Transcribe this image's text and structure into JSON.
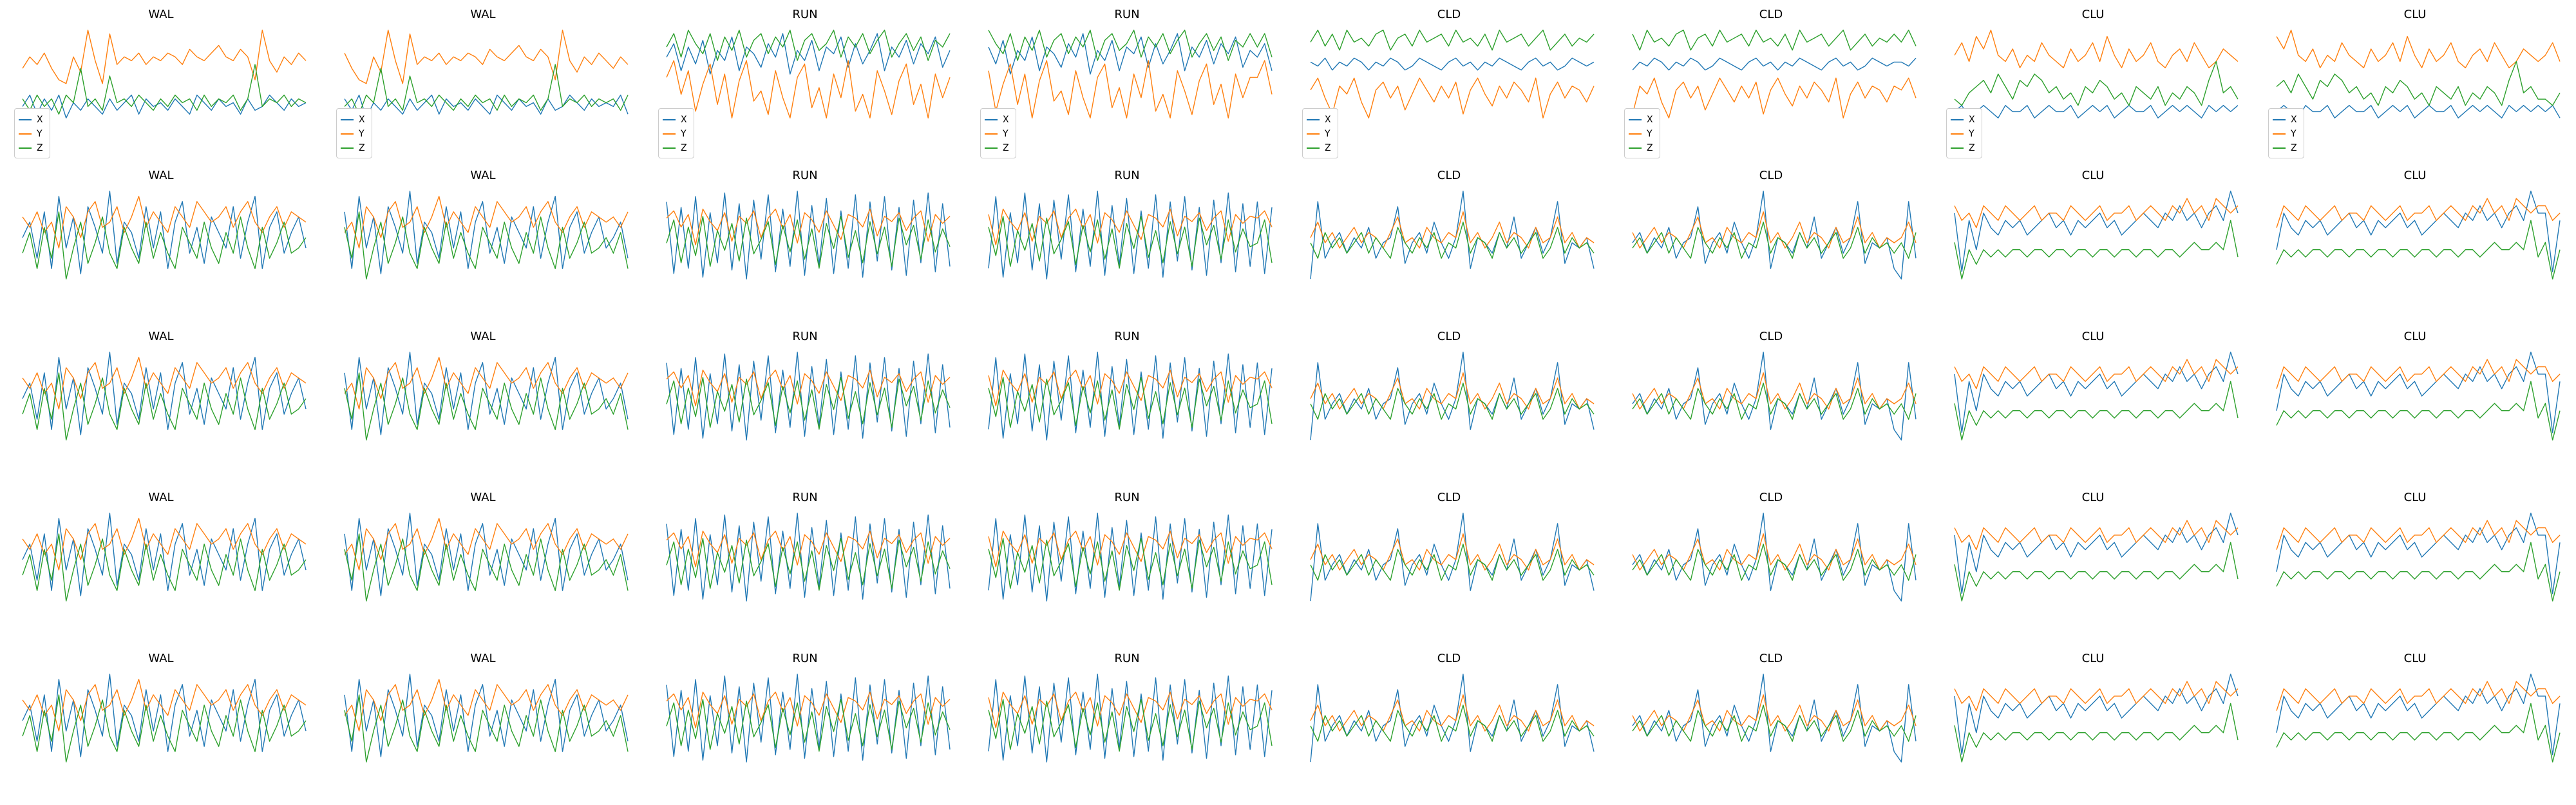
{
  "chart_data": {
    "type": "line",
    "layout": "grid",
    "legend": {
      "placement": "lower-left",
      "shown_in_row": 1
    },
    "series_names": [
      "X",
      "Y",
      "Z"
    ],
    "series_colors": {
      "X": "#1f77b4",
      "Y": "#ff7f0e",
      "Z": "#2ca02c"
    },
    "axes_visible": false,
    "grid": false,
    "panel_titles": [
      [
        "WAL",
        "WAL",
        "RUN",
        "RUN",
        "CLD",
        "CLD",
        "CLU",
        "CLU"
      ],
      [
        "WAL",
        "WAL",
        "RUN",
        "RUN",
        "CLD",
        "CLD",
        "CLU",
        "CLU"
      ],
      [
        "WAL",
        "WAL",
        "RUN",
        "RUN",
        "CLD",
        "CLD",
        "CLU",
        "CLU"
      ],
      [
        "WAL",
        "WAL",
        "RUN",
        "RUN",
        "CLD",
        "CLD",
        "CLU",
        "CLU"
      ],
      [
        "WAL",
        "WAL",
        "RUN",
        "RUN",
        "CLD",
        "CLD",
        "CLU",
        "CLU"
      ]
    ],
    "activity_traces": {
      "WAL": {
        "X": [
          0.0,
          0.3,
          -0.4,
          0.5,
          -0.6,
          0.8,
          -0.2,
          0.4,
          -0.7,
          0.6,
          0.2,
          -0.3,
          0.9,
          -0.5,
          0.3,
          0.1,
          -0.4,
          0.6,
          -0.2,
          0.5,
          -0.6,
          0.3,
          0.7,
          -0.3,
          0.2,
          -0.5,
          0.4,
          0.1,
          -0.2,
          0.6,
          -0.4,
          0.3,
          0.8,
          -0.6,
          0.2,
          0.5,
          -0.3,
          0.1,
          0.4,
          -0.2
        ],
        "Y": [
          0.4,
          0.2,
          0.5,
          0.1,
          0.3,
          -0.2,
          0.6,
          0.4,
          0.0,
          0.5,
          0.7,
          0.2,
          0.3,
          0.6,
          0.1,
          0.4,
          0.8,
          0.2,
          0.5,
          0.3,
          0.1,
          0.6,
          0.4,
          0.2,
          0.7,
          0.5,
          0.3,
          0.4,
          0.6,
          0.2,
          0.5,
          0.7,
          0.3,
          0.1,
          0.4,
          0.6,
          0.2,
          0.5,
          0.4,
          0.3
        ],
        "Z": [
          -0.3,
          0.1,
          -0.6,
          0.2,
          -0.4,
          0.5,
          -0.8,
          -0.2,
          0.3,
          -0.5,
          -0.1,
          0.4,
          -0.3,
          -0.6,
          0.2,
          -0.2,
          -0.5,
          0.3,
          -0.4,
          0.1,
          -0.3,
          -0.6,
          0.2,
          -0.1,
          -0.4,
          0.3,
          -0.2,
          -0.5,
          0.1,
          -0.3,
          0.4,
          -0.2,
          -0.6,
          0.2,
          -0.4,
          -0.1,
          0.3,
          -0.3,
          -0.2,
          0.0
        ]
      },
      "RUN": {
        "X": [
          1.8,
          -2.2,
          1.5,
          -1.9,
          2.1,
          -2.4,
          1.2,
          -1.6,
          2.3,
          -2.0,
          1.7,
          -2.5,
          1.9,
          -1.4,
          2.2,
          -2.1,
          1.4,
          -1.8,
          2.4,
          -2.3,
          1.6,
          -1.7,
          2.0,
          -2.2,
          1.3,
          -1.9,
          2.2,
          -2.4,
          1.8,
          -1.5,
          2.1,
          -2.0,
          1.5,
          -2.3,
          1.9,
          -1.6,
          2.3,
          -2.1,
          1.7,
          -1.8
        ],
        "Y": [
          0.9,
          1.3,
          0.4,
          1.1,
          -0.6,
          1.4,
          0.7,
          0.2,
          1.2,
          -0.4,
          1.0,
          0.6,
          1.3,
          -0.2,
          0.9,
          1.4,
          0.3,
          1.1,
          -0.5,
          1.2,
          0.8,
          0.1,
          1.3,
          0.5,
          -0.3,
          1.1,
          0.9,
          0.4,
          1.4,
          -0.1,
          1.0,
          0.7,
          1.2,
          0.2,
          0.9,
          1.3,
          -0.4,
          1.1,
          0.6,
          1.0
        ],
        "Z": [
          -0.5,
          0.8,
          -1.6,
          0.4,
          -1.2,
          1.0,
          -1.8,
          0.2,
          -0.9,
          0.6,
          -1.5,
          0.9,
          -1.1,
          -0.3,
          0.7,
          -1.7,
          0.5,
          -1.0,
          0.8,
          -1.4,
          0.3,
          -1.9,
          0.6,
          -0.8,
          1.0,
          -1.3,
          0.2,
          -1.6,
          0.7,
          -1.1,
          0.4,
          -1.8,
          0.9,
          -0.6,
          0.5,
          -1.4,
          0.8,
          -1.0,
          0.3,
          -0.7
        ]
      },
      "CLD": {
        "X": [
          -0.6,
          0.9,
          -0.2,
          0.1,
          0.3,
          -0.1,
          0.2,
          0.0,
          0.4,
          -0.2,
          0.1,
          0.2,
          0.8,
          -0.3,
          0.1,
          0.3,
          -0.1,
          0.5,
          0.1,
          -0.2,
          0.2,
          1.1,
          -0.4,
          0.2,
          0.1,
          -0.1,
          0.3,
          0.0,
          0.6,
          -0.2,
          0.1,
          0.4,
          -0.1,
          0.2,
          0.9,
          -0.3,
          0.1,
          0.0,
          0.2,
          -0.4
        ],
        "Y": [
          0.2,
          0.5,
          0.1,
          0.3,
          0.0,
          0.2,
          0.4,
          0.1,
          0.3,
          0.2,
          0.0,
          0.3,
          0.6,
          0.1,
          0.2,
          0.0,
          0.4,
          0.2,
          0.1,
          0.3,
          0.2,
          0.7,
          0.1,
          0.3,
          0.0,
          0.2,
          0.5,
          0.1,
          0.3,
          0.2,
          0.0,
          0.4,
          0.1,
          0.2,
          0.6,
          0.1,
          0.3,
          0.0,
          0.2,
          0.1
        ],
        "Z": [
          0.1,
          -0.2,
          0.3,
          0.0,
          0.2,
          -0.1,
          0.1,
          0.3,
          -0.1,
          0.2,
          0.0,
          -0.2,
          0.4,
          0.1,
          -0.1,
          0.2,
          0.0,
          0.3,
          -0.2,
          0.1,
          0.0,
          0.5,
          -0.1,
          0.2,
          0.1,
          -0.2,
          0.3,
          0.0,
          0.2,
          -0.1,
          0.1,
          0.3,
          -0.2,
          0.0,
          0.4,
          -0.1,
          0.2,
          0.0,
          0.1,
          -0.1
        ]
      },
      "CLU": {
        "X": [
          0.2,
          -0.6,
          0.1,
          -0.3,
          0.2,
          0.0,
          -0.1,
          0.1,
          0.0,
          0.1,
          -0.1,
          0.0,
          0.1,
          0.2,
          0.0,
          0.1,
          -0.1,
          0.1,
          0.0,
          0.1,
          0.2,
          0.0,
          0.1,
          -0.1,
          0.0,
          0.1,
          0.2,
          0.1,
          0.0,
          0.2,
          0.1,
          0.3,
          0.1,
          0.2,
          0.0,
          0.2,
          0.3,
          0.1,
          0.5,
          0.2
        ],
        "Y": [
          0.3,
          0.1,
          0.2,
          0.0,
          0.3,
          0.2,
          0.1,
          0.3,
          0.2,
          0.1,
          0.2,
          0.3,
          0.1,
          0.2,
          0.2,
          0.1,
          0.3,
          0.2,
          0.1,
          0.2,
          0.3,
          0.1,
          0.2,
          0.2,
          0.3,
          0.1,
          0.2,
          0.3,
          0.2,
          0.1,
          0.3,
          0.2,
          0.4,
          0.2,
          0.3,
          0.1,
          0.4,
          0.3,
          0.2,
          0.3
        ],
        "Z": [
          -0.2,
          -0.7,
          -0.3,
          -0.5,
          -0.3,
          -0.4,
          -0.3,
          -0.4,
          -0.3,
          -0.3,
          -0.4,
          -0.3,
          -0.3,
          -0.4,
          -0.3,
          -0.3,
          -0.4,
          -0.3,
          -0.3,
          -0.4,
          -0.3,
          -0.3,
          -0.4,
          -0.3,
          -0.3,
          -0.4,
          -0.3,
          -0.3,
          -0.4,
          -0.3,
          -0.3,
          -0.4,
          -0.3,
          -0.2,
          -0.3,
          -0.3,
          -0.2,
          -0.3,
          0.1,
          -0.4
        ]
      }
    },
    "first_row_traces": {
      "WAL": {
        "X": [
          -0.4,
          -0.1,
          -0.6,
          -0.2,
          -0.5,
          -0.1,
          -0.7,
          -0.3,
          -0.5,
          -0.2,
          -0.4,
          -0.6,
          -0.2,
          -0.5,
          -0.3,
          -0.1,
          -0.6,
          -0.2,
          -0.4,
          -0.3,
          -0.5,
          -0.2,
          -0.4,
          -0.6,
          -0.1,
          -0.3,
          -0.5,
          -0.2,
          -0.4,
          -0.3,
          -0.6,
          -0.2,
          -0.5,
          -0.4,
          -0.1,
          -0.3,
          -0.5,
          -0.2,
          -0.4,
          -0.3
        ],
        "Y": [
          0.6,
          0.9,
          0.7,
          1.0,
          0.6,
          0.3,
          0.2,
          0.9,
          0.5,
          1.6,
          0.8,
          0.2,
          1.5,
          0.7,
          0.9,
          0.8,
          1.0,
          0.7,
          0.9,
          0.8,
          1.0,
          0.9,
          0.7,
          1.1,
          0.9,
          0.8,
          1.0,
          1.2,
          0.9,
          0.8,
          1.1,
          0.9,
          0.3,
          1.6,
          0.8,
          0.5,
          0.9,
          0.7,
          1.0,
          0.8
        ],
        "Z": [
          -0.2,
          -0.5,
          -0.1,
          -0.4,
          -0.2,
          -0.6,
          -0.1,
          -0.3,
          0.6,
          -0.4,
          -0.2,
          -0.5,
          0.4,
          -0.3,
          -0.2,
          -0.4,
          -0.1,
          -0.3,
          -0.5,
          -0.2,
          -0.4,
          -0.1,
          -0.3,
          -0.2,
          -0.5,
          -0.1,
          -0.4,
          -0.2,
          -0.3,
          -0.1,
          -0.5,
          -0.2,
          0.7,
          -0.4,
          -0.2,
          -0.3,
          -0.1,
          -0.4,
          -0.2,
          -0.3
        ]
      },
      "RUN": {
        "X": [
          0.2,
          0.6,
          -0.2,
          0.5,
          0.0,
          0.7,
          -0.3,
          0.4,
          0.1,
          0.8,
          -0.2,
          0.5,
          0.3,
          -0.1,
          0.6,
          0.2,
          0.9,
          -0.3,
          0.4,
          0.1,
          0.7,
          -0.2,
          0.5,
          0.3,
          0.8,
          -0.1,
          0.6,
          0.0,
          0.4,
          0.9,
          -0.2,
          0.5,
          0.2,
          0.7,
          0.0,
          0.6,
          0.3,
          0.8,
          -0.1,
          0.4
        ],
        "Y": [
          -0.4,
          0.1,
          -0.9,
          -0.2,
          -1.4,
          -0.6,
          0.0,
          -1.2,
          -0.3,
          -1.6,
          -0.5,
          0.1,
          -1.1,
          -0.8,
          -1.5,
          -0.2,
          -1.0,
          -1.6,
          -0.4,
          0.0,
          -1.3,
          -0.7,
          -1.6,
          -0.3,
          -1.0,
          0.1,
          -1.4,
          -0.9,
          -1.6,
          -0.2,
          -0.8,
          -1.5,
          -0.5,
          0.0,
          -1.2,
          -0.6,
          -1.6,
          -0.3,
          -1.0,
          -0.4
        ],
        "Z": [
          0.5,
          0.9,
          0.2,
          1.0,
          0.6,
          0.3,
          0.9,
          0.1,
          0.8,
          0.4,
          1.0,
          0.2,
          0.7,
          0.9,
          0.3,
          0.8,
          0.5,
          1.0,
          0.1,
          0.7,
          0.9,
          0.4,
          0.6,
          1.0,
          0.2,
          0.8,
          0.5,
          0.9,
          0.3,
          0.7,
          1.0,
          0.2,
          0.6,
          0.9,
          0.4,
          0.8,
          0.1,
          0.7,
          0.5,
          0.9
        ]
      },
      "CLD": {
        "X": [
          0.1,
          0.0,
          0.2,
          -0.1,
          0.1,
          0.0,
          0.2,
          0.1,
          -0.1,
          0.1,
          0.0,
          0.2,
          0.1,
          -0.1,
          0.0,
          0.2,
          0.1,
          0.0,
          -0.1,
          0.1,
          0.2,
          0.0,
          0.1,
          -0.1,
          0.1,
          0.0,
          0.2,
          0.1,
          0.0,
          -0.1,
          0.1,
          0.2,
          0.0,
          0.1,
          -0.1,
          0.0,
          0.2,
          0.1,
          0.0,
          0.1
        ],
        "Y": [
          -0.6,
          -0.3,
          -0.8,
          -1.2,
          -0.5,
          -0.7,
          -0.3,
          -0.9,
          -1.3,
          -0.6,
          -0.4,
          -0.8,
          -0.5,
          -1.1,
          -0.7,
          -0.3,
          -0.6,
          -0.9,
          -0.5,
          -0.8,
          -0.4,
          -1.2,
          -0.6,
          -0.3,
          -0.7,
          -1.0,
          -0.5,
          -0.8,
          -0.4,
          -0.6,
          -0.9,
          -0.3,
          -1.3,
          -0.7,
          -0.4,
          -0.8,
          -0.5,
          -0.6,
          -0.9,
          -0.5
        ],
        "Z": [
          0.6,
          0.9,
          0.5,
          0.8,
          0.4,
          0.9,
          0.6,
          0.7,
          0.5,
          0.8,
          0.9,
          0.4,
          0.7,
          0.8,
          0.5,
          0.9,
          0.6,
          0.7,
          0.8,
          0.5,
          0.9,
          0.6,
          0.7,
          0.5,
          0.8,
          0.4,
          0.9,
          0.6,
          0.7,
          0.8,
          0.5,
          0.7,
          0.9,
          0.4,
          0.6,
          0.8,
          0.5,
          0.7,
          0.6,
          0.8
        ]
      },
      "CLU": {
        "X": [
          -0.2,
          -0.1,
          -0.3,
          -0.2,
          -0.1,
          -0.2,
          -0.3,
          -0.1,
          -0.2,
          -0.2,
          -0.1,
          -0.3,
          -0.2,
          -0.1,
          -0.2,
          -0.2,
          -0.1,
          -0.3,
          -0.2,
          -0.1,
          -0.2,
          -0.1,
          -0.3,
          -0.2,
          -0.1,
          -0.2,
          -0.2,
          -0.1,
          -0.3,
          -0.2,
          -0.1,
          -0.2,
          -0.1,
          -0.2,
          -0.3,
          -0.1,
          -0.2,
          -0.1,
          -0.2,
          -0.1
        ],
        "Y": [
          0.7,
          0.9,
          0.6,
          1.0,
          0.8,
          1.1,
          0.7,
          0.6,
          0.8,
          0.5,
          0.7,
          0.6,
          0.9,
          0.7,
          0.6,
          0.5,
          0.8,
          0.6,
          0.7,
          0.9,
          0.6,
          1.0,
          0.7,
          0.5,
          0.8,
          0.6,
          0.7,
          0.9,
          0.6,
          0.5,
          0.7,
          0.8,
          0.6,
          0.9,
          0.7,
          0.5,
          0.6,
          0.8,
          0.7,
          0.6
        ],
        "Z": [
          0.0,
          -0.1,
          0.1,
          0.2,
          0.3,
          0.1,
          0.4,
          0.2,
          0.0,
          0.3,
          0.2,
          0.4,
          0.3,
          0.1,
          0.2,
          0.0,
          0.1,
          -0.1,
          0.2,
          0.1,
          0.3,
          0.2,
          0.0,
          0.1,
          -0.1,
          0.2,
          0.1,
          0.0,
          0.2,
          -0.1,
          0.1,
          0.0,
          0.2,
          0.1,
          -0.1,
          0.3,
          0.6,
          0.1,
          0.2,
          0.0
        ]
      }
    }
  }
}
